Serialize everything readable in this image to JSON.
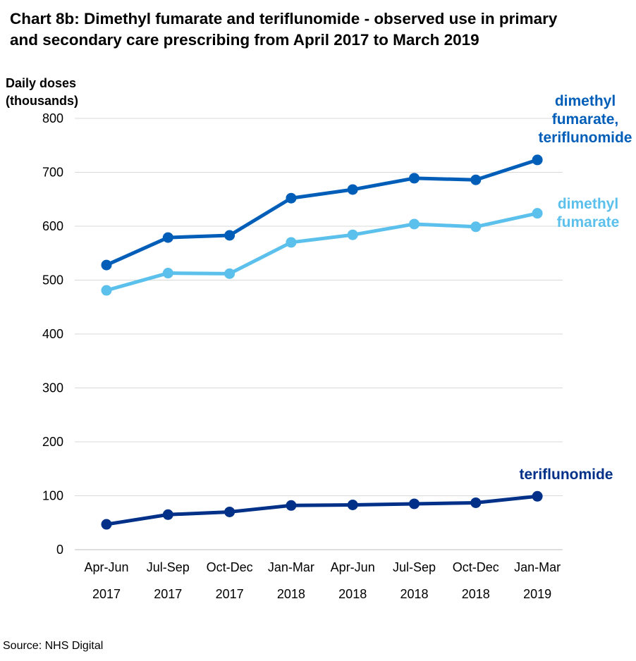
{
  "title_line1": "Chart 8b: Dimethyl fumarate and teriflunomide - observed use in primary",
  "title_line2": "and secondary care prescribing from April 2017 to March 2019",
  "source": "Source: NHS Digital",
  "chart_data": {
    "type": "line",
    "title": "Chart 8b: Dimethyl fumarate and teriflunomide - observed use in primary and secondary care prescribing from April 2017 to March 2019",
    "ylabel_line1": "Daily doses",
    "ylabel_line2": "(thousands)",
    "xlabel": "",
    "ylim": [
      0,
      800
    ],
    "yticks": [
      0,
      100,
      200,
      300,
      400,
      500,
      600,
      700,
      800
    ],
    "grid": true,
    "categories": [
      {
        "period": "Apr-Jun",
        "year": "2017"
      },
      {
        "period": "Jul-Sep",
        "year": "2017"
      },
      {
        "period": "Oct-Dec",
        "year": "2017"
      },
      {
        "period": "Jan-Mar",
        "year": "2018"
      },
      {
        "period": "Apr-Jun",
        "year": "2018"
      },
      {
        "period": "Jul-Sep",
        "year": "2018"
      },
      {
        "period": "Oct-Dec",
        "year": "2018"
      },
      {
        "period": "Jan-Mar",
        "year": "2019"
      }
    ],
    "series": [
      {
        "name": "dimethyl fumarate, teriflunomide",
        "label_lines": [
          "dimethyl",
          "fumarate,",
          "teriflunomide"
        ],
        "color": "#005EB8",
        "values": [
          528,
          579,
          583,
          652,
          668,
          689,
          686,
          723
        ]
      },
      {
        "name": "dimethyl fumarate",
        "label_lines": [
          "dimethyl",
          "fumarate"
        ],
        "color": "#5BC0EB",
        "values": [
          481,
          513,
          512,
          570,
          584,
          604,
          599,
          624
        ]
      },
      {
        "name": "teriflunomide",
        "label_lines": [
          "teriflunomide"
        ],
        "color": "#003087",
        "values": [
          47,
          65,
          70,
          82,
          83,
          85,
          87,
          99
        ]
      }
    ]
  }
}
